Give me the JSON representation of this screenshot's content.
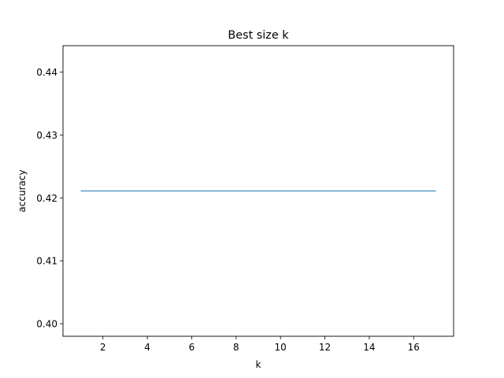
{
  "chart_data": {
    "type": "line",
    "title": "Best size k",
    "xlabel": "k",
    "ylabel": "accuracy",
    "xlim": [
      0.2,
      17.8
    ],
    "ylim": [
      0.398,
      0.4442
    ],
    "xticks": [
      2,
      4,
      6,
      8,
      10,
      12,
      14,
      16
    ],
    "yticks": [
      0.4,
      0.41,
      0.42,
      0.43,
      0.44
    ],
    "ytick_labels": [
      "0.40",
      "0.41",
      "0.42",
      "0.43",
      "0.44"
    ],
    "grid": false,
    "series": [
      {
        "color": "#1f77b4",
        "x": [
          1,
          2,
          3,
          4,
          5,
          6,
          7,
          8,
          9,
          10,
          11,
          12,
          13,
          14,
          15,
          16,
          17
        ],
        "y": [
          0.4211,
          0.4211,
          0.4211,
          0.4211,
          0.4211,
          0.4211,
          0.4211,
          0.4211,
          0.4211,
          0.4211,
          0.4211,
          0.4211,
          0.4211,
          0.4211,
          0.4211,
          0.4211,
          0.4211
        ]
      }
    ]
  }
}
